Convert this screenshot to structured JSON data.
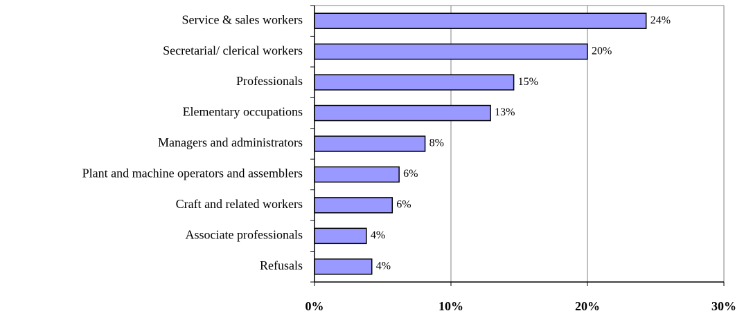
{
  "chart_data": {
    "type": "bar",
    "orientation": "horizontal",
    "categories": [
      "Service & sales workers",
      "Secretarial/ clerical workers",
      "Professionals",
      "Elementary occupations",
      "Managers and administrators",
      "Plant and machine operators and assemblers",
      "Craft and related workers",
      "Associate professionals",
      "Refusals"
    ],
    "values": [
      24.3,
      20.0,
      14.6,
      12.9,
      8.1,
      6.2,
      5.7,
      3.8,
      4.2
    ],
    "value_labels": [
      "24%",
      "20%",
      "15%",
      "13%",
      "8%",
      "6%",
      "6%",
      "4%",
      "4%"
    ],
    "color": "#9999ff",
    "xlim": [
      0,
      30
    ],
    "xticks": [
      {
        "value": 0,
        "label": "0%"
      },
      {
        "value": 10,
        "label": "10%"
      },
      {
        "value": 20,
        "label": "20%"
      },
      {
        "value": 30,
        "label": "30%"
      }
    ],
    "grid": true
  }
}
